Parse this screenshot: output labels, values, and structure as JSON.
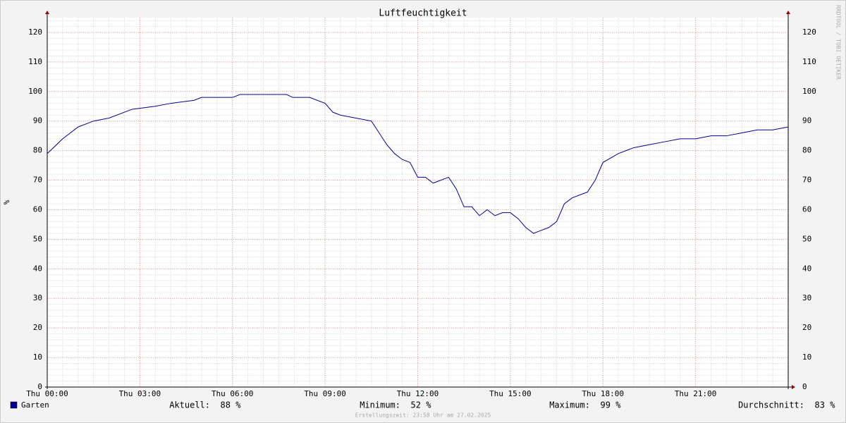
{
  "chart_data": {
    "type": "line",
    "title": "Luftfeuchtigkeit",
    "y_label": "%",
    "side_text": "RRDTOOL / TOBI OETIKER",
    "footer": "Erstellungszeit: 23:58 Uhr am 27.02.2025",
    "x": [
      0,
      0.5,
      1,
      1.5,
      2,
      2.75,
      3.5,
      4,
      4.75,
      5,
      6,
      6.25,
      7.75,
      7.95,
      8.5,
      9,
      9.25,
      9.5,
      10,
      10.5,
      10.75,
      11,
      11.25,
      11.5,
      11.75,
      12,
      12.25,
      12.5,
      13,
      13.25,
      13.5,
      13.75,
      14,
      14.25,
      14.5,
      14.75,
      15,
      15.25,
      15.5,
      15.75,
      16,
      16.25,
      16.5,
      16.75,
      17,
      17.25,
      17.5,
      17.75,
      18,
      18.5,
      19,
      19.5,
      20,
      20.5,
      21,
      21.5,
      22,
      22.5,
      23,
      23.5,
      24
    ],
    "series": [
      {
        "name": "Garten",
        "color": "#000099",
        "values": [
          79,
          84,
          88,
          90,
          91,
          94,
          95,
          96,
          97,
          98,
          98,
          99,
          99,
          98,
          98,
          96,
          93,
          92,
          91,
          90,
          86,
          82,
          79,
          77,
          76,
          71,
          71,
          69,
          71,
          67,
          61,
          61,
          58,
          60,
          58,
          59,
          59,
          57,
          54,
          52,
          53,
          54,
          56,
          62,
          64,
          65,
          66,
          70,
          76,
          79,
          81,
          82,
          83,
          84,
          84,
          85,
          85,
          86,
          87,
          87,
          88
        ]
      }
    ],
    "xlim": [
      0,
      24
    ],
    "xticks": [
      {
        "value": 0,
        "label": "Thu 00:00"
      },
      {
        "value": 3,
        "label": "Thu 03:00"
      },
      {
        "value": 6,
        "label": "Thu 06:00"
      },
      {
        "value": 9,
        "label": "Thu 09:00"
      },
      {
        "value": 12,
        "label": "Thu 12:00"
      },
      {
        "value": 15,
        "label": "Thu 15:00"
      },
      {
        "value": 18,
        "label": "Thu 18:00"
      },
      {
        "value": 21,
        "label": "Thu 21:00"
      }
    ],
    "ylim": [
      0,
      125
    ],
    "yticks": [
      0,
      10,
      20,
      30,
      40,
      50,
      60,
      70,
      80,
      90,
      100,
      110,
      120
    ],
    "grid": true,
    "stats": [
      {
        "label": "Aktuell:",
        "value": "88 %"
      },
      {
        "label": "Minimum:",
        "value": "52 %"
      },
      {
        "label": "Maximum:",
        "value": "99 %"
      },
      {
        "label": "Durchschnitt:",
        "value": "83 %"
      }
    ]
  }
}
